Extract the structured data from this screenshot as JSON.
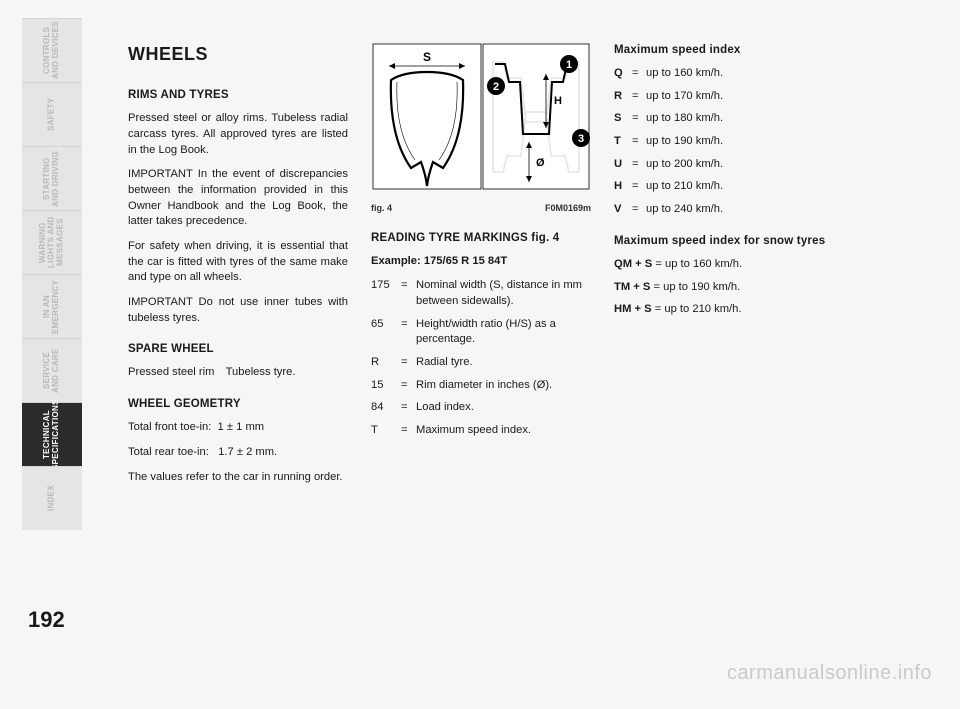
{
  "pageNumber": "192",
  "watermark": "carmanualsonline.info",
  "sidebar": {
    "tabs": [
      {
        "label": "CONTROLS\nAND DEVICES",
        "active": false
      },
      {
        "label": "SAFETY",
        "active": false
      },
      {
        "label": "STARTING\nAND DRIVING",
        "active": false
      },
      {
        "label": "WARNING\nLIGHTS AND\nMESSAGES",
        "active": false
      },
      {
        "label": "IN AN\nEMERGENCY",
        "active": false
      },
      {
        "label": "SERVICE\nAND CARE",
        "active": false
      },
      {
        "label": "TECHNICAL\nSPECIFICATIONS",
        "active": true
      },
      {
        "label": "INDEX",
        "active": false
      }
    ]
  },
  "col1": {
    "title": "WHEELS",
    "h_rims": "RIMS AND TYRES",
    "p1": "Pressed steel or alloy rims. Tubeless radial carcass tyres. All approved tyres are listed in the Log Book.",
    "p2": "IMPORTANT In the event of discrepancies between the information provided in this Owner Handbook and the Log Book, the latter takes precedence.",
    "p3": "For safety when driving, it is essential that the car is fitted with tyres of the same make and type on all wheels.",
    "p4": "IMPORTANT Do not use inner tubes with tubeless tyres.",
    "h_spare": "SPARE WHEEL",
    "p5": "Pressed steel rim Tubeless tyre.",
    "h_geom": "WHEEL GEOMETRY",
    "p6": "Total front toe-in:  1 ± 1 mm",
    "p7": "Total rear toe-in:   1.7 ± 2 mm.",
    "p8": "The values refer to the car in running order."
  },
  "figure": {
    "caption_left": "fig. 4",
    "caption_right": "F0M0169m",
    "labels": {
      "S": "S",
      "H": "H",
      "O": "Ø",
      "n1": "1",
      "n2": "2",
      "n3": "3"
    }
  },
  "col2": {
    "h_reading": "READING TYRE MARKINGS fig. 4",
    "example_label": "Example: 175/65 R 15 84T",
    "rows": [
      {
        "code": "175",
        "desc": "Nominal width (S, distance in mm between sidewalls)."
      },
      {
        "code": "65",
        "desc": "Height/width ratio (H/S) as a percentage."
      },
      {
        "code": "R",
        "desc": "Radial tyre."
      },
      {
        "code": "15",
        "desc": "Rim diameter in inches (Ø)."
      },
      {
        "code": "84",
        "desc": "Load index."
      },
      {
        "code": "T",
        "desc": "Maximum speed index."
      }
    ]
  },
  "col3": {
    "h_max": "Maximum speed index",
    "speeds": [
      {
        "code": "Q",
        "desc": "up to 160 km/h."
      },
      {
        "code": "R",
        "desc": "up to 170 km/h."
      },
      {
        "code": "S",
        "desc": "up to 180 km/h."
      },
      {
        "code": "T",
        "desc": "up to 190 km/h."
      },
      {
        "code": "U",
        "desc": "up to 200 km/h."
      },
      {
        "code": "H",
        "desc": "up to 210 km/h."
      },
      {
        "code": "V",
        "desc": "up to 240 km/h."
      }
    ],
    "h_snow": "Maximum speed index for snow tyres",
    "snow": [
      {
        "code": "QM + S",
        "desc": " = up to 160 km/h."
      },
      {
        "code": "TM + S",
        "desc": " = up to 190 km/h."
      },
      {
        "code": "HM + S",
        "desc": " = up to 210 km/h."
      }
    ]
  }
}
